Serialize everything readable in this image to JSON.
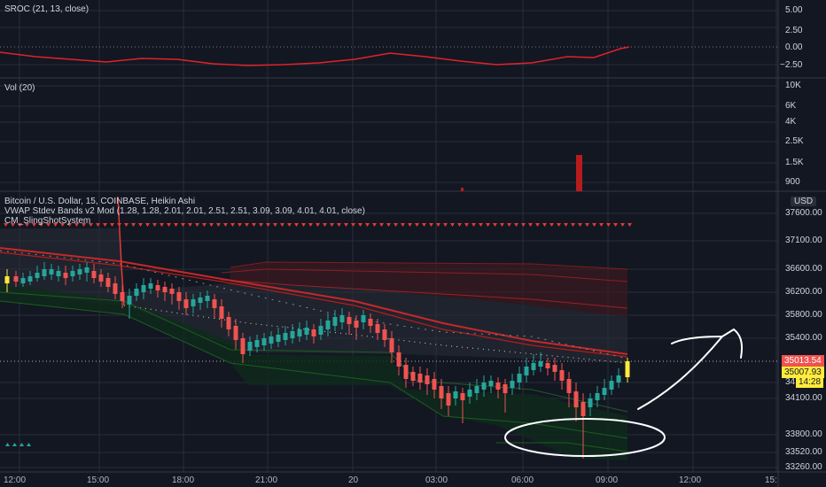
{
  "panes": {
    "sroc": {
      "title": "SROC (21, 13, close)",
      "ticks": [
        "5.00",
        "2.50",
        "0.00",
        "−2.50"
      ]
    },
    "vol": {
      "title": "Vol (20)",
      "ticks": [
        "10K",
        "6K",
        "4K",
        "2.5K",
        "1.5K",
        "900"
      ]
    },
    "main": {
      "symbol_line": "Bitcoin / U.S. Dollar, 15, COINBASE, Heikin Ashi",
      "vwap_line": "VWAP Stdev Bands v2 Mod (1.28, 1.28, 2.01, 2.01, 2.51, 2.51, 3.09, 3.09, 4.01, 4.01, close)",
      "cm_line": "CM_SlingShotSystem",
      "currency": "USD",
      "ticks": [
        "37600.00",
        "37100.00",
        "36600.00",
        "36200.00",
        "35800.00",
        "35400.00",
        "35013.54",
        "34100.00",
        "33800.00",
        "33520.00",
        "33260.00"
      ],
      "last_price": "35013.54",
      "bid_price": "35007.93",
      "countdown": "14:28",
      "partial_tick": "34"
    }
  },
  "time_axis": [
    "12:00",
    "15:00",
    "18:00",
    "21:00",
    "20",
    "03:00",
    "06:00",
    "09:00",
    "12:00",
    "15:"
  ],
  "colors": {
    "bg": "#131722",
    "grid": "#2a2e39",
    "up": "#26a69a",
    "down": "#ef5350",
    "sroc_line": "#e0222a",
    "vol_bar": "#b71c1c",
    "band_fill": "#2a2e39",
    "last_price_tag": "#ef5350",
    "yellow_tag": "#ffeb3b"
  },
  "chart_data": {
    "type": "candlestick",
    "x": [
      "12:00",
      "15:00",
      "18:00",
      "21:00",
      "20",
      "03:00",
      "06:00",
      "09:00"
    ],
    "price_range": [
      33260,
      37600
    ],
    "last_price": 35013.54,
    "sroc_range": [
      -2.5,
      5.0
    ],
    "vol_range": [
      900,
      10000
    ]
  }
}
